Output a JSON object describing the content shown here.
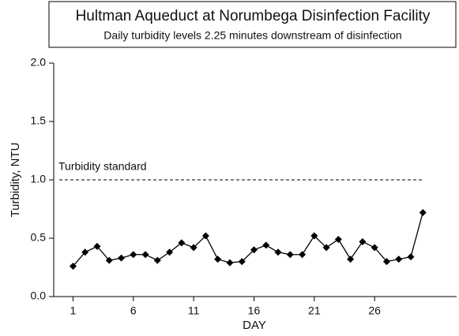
{
  "chart_data": {
    "type": "line",
    "title": "Hultman Aqueduct at Norumbega Disinfection Facility",
    "subtitle": "Daily turbidity levels 2.25 minutes downstream of disinfection",
    "x_label": "DAY",
    "y_label": "Turbidity, NTU",
    "x": [
      1,
      2,
      3,
      4,
      5,
      6,
      7,
      8,
      9,
      10,
      11,
      12,
      13,
      14,
      15,
      16,
      17,
      18,
      19,
      20,
      21,
      22,
      23,
      24,
      25,
      26,
      27,
      28,
      29,
      30
    ],
    "series": [
      {
        "name": "Turbidity",
        "color": "#000000",
        "values": [
          0.26,
          0.38,
          0.43,
          0.31,
          0.33,
          0.36,
          0.36,
          0.31,
          0.38,
          0.46,
          0.42,
          0.52,
          0.32,
          0.29,
          0.3,
          0.4,
          0.44,
          0.38,
          0.36,
          0.36,
          0.52,
          0.42,
          0.49,
          0.32,
          0.47,
          0.42,
          0.3,
          0.32,
          0.34,
          0.72
        ]
      }
    ],
    "reference_line": {
      "value": 1.0,
      "label": "Turbidity standard"
    },
    "xlim": [
      -0.6,
      32.8
    ],
    "xticks": [
      1,
      6,
      11,
      16,
      21,
      26
    ],
    "ylim": [
      0,
      2
    ],
    "yticks": [
      {
        "value": 0,
        "label": "0.0"
      },
      {
        "value": 0.5,
        "label": "0.5"
      },
      {
        "value": 1,
        "label": "1.0"
      },
      {
        "value": 1.5,
        "label": "1.5"
      },
      {
        "value": 2,
        "label": "2.0"
      }
    ]
  }
}
